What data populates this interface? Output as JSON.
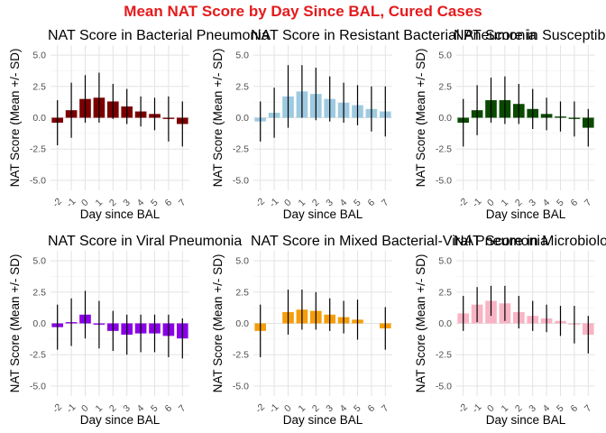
{
  "figure": {
    "title": "Mean NAT Score by Day Since BAL, Cured Cases",
    "title_color": "#e41a1c"
  },
  "chart_data": [
    {
      "type": "bar",
      "title": "NAT Score in Bacterial Pneumonia",
      "xlabel": "Day since BAL",
      "ylabel": "NAT Score (Mean +/- SD)",
      "ylim": [
        -5.8,
        5.8
      ],
      "yticks": [
        "-5.0",
        "-2.5",
        "0.0",
        "2.5",
        "5.0"
      ],
      "categories": [
        "-2",
        "-1",
        "0",
        "1",
        "2",
        "3",
        "4",
        "5",
        "6",
        "7"
      ],
      "color": "#7a0000",
      "values": [
        -0.4,
        0.6,
        1.5,
        1.6,
        1.3,
        0.9,
        0.5,
        0.3,
        -0.1,
        -0.5
      ],
      "sd": [
        1.8,
        2.2,
        1.9,
        2.0,
        1.4,
        1.4,
        1.2,
        1.3,
        1.8,
        1.8
      ],
      "grid": true
    },
    {
      "type": "bar",
      "title": "NAT Score in Resistant Bacterial Pneumonia",
      "xlabel": "Day since BAL",
      "ylabel": "NAT Score (Mean +/- SD)",
      "ylim": [
        -5.8,
        5.8
      ],
      "yticks": [
        "-5.0",
        "-2.5",
        "0.0",
        "2.5",
        "5.0"
      ],
      "categories": [
        "-2",
        "-1",
        "0",
        "1",
        "2",
        "3",
        "4",
        "5",
        "6",
        "7"
      ],
      "color": "#9ecae1",
      "values": [
        -0.3,
        0.4,
        1.7,
        2.1,
        1.9,
        1.5,
        1.2,
        1.0,
        0.7,
        0.5
      ],
      "sd": [
        1.6,
        2.0,
        2.5,
        2.1,
        2.1,
        1.8,
        1.6,
        1.6,
        1.8,
        2.0
      ],
      "grid": true
    },
    {
      "type": "bar",
      "title": "NAT Score in Susceptible Bacterial Pneumonia",
      "xlabel": "Day since BAL",
      "ylabel": "NAT Score (Mean +/- SD)",
      "ylim": [
        -5.8,
        5.8
      ],
      "yticks": [
        "-5.0",
        "-2.5",
        "0.0",
        "2.5",
        "5.0"
      ],
      "categories": [
        "-2",
        "-1",
        "0",
        "1",
        "2",
        "3",
        "4",
        "5",
        "6",
        "7"
      ],
      "color": "#0a4a00",
      "values": [
        -0.4,
        0.6,
        1.4,
        1.4,
        1.1,
        0.7,
        0.3,
        0.1,
        -0.1,
        -0.8
      ],
      "sd": [
        1.9,
        2.0,
        1.8,
        1.9,
        1.6,
        1.6,
        1.3,
        1.2,
        1.4,
        1.5
      ],
      "grid": true
    },
    {
      "type": "bar",
      "title": "NAT Score in Viral Pneumonia",
      "xlabel": "Day since BAL",
      "ylabel": "NAT Score (Mean +/- SD)",
      "ylim": [
        -5.8,
        5.8
      ],
      "yticks": [
        "-5.0",
        "-2.5",
        "0.0",
        "2.5",
        "5.0"
      ],
      "categories": [
        "-2",
        "-1",
        "0",
        "1",
        "2",
        "3",
        "4",
        "5",
        "6",
        "7"
      ],
      "color": "#8a00e6",
      "values": [
        -0.3,
        0.1,
        0.7,
        -0.1,
        -0.6,
        -0.9,
        -0.8,
        -0.8,
        -1.0,
        -1.2
      ],
      "sd": [
        1.8,
        1.9,
        1.9,
        1.9,
        1.6,
        1.6,
        1.5,
        1.5,
        1.7,
        1.6
      ],
      "grid": true
    },
    {
      "type": "bar",
      "title": "NAT Score in Mixed Bacterial-Viral Pneumonia",
      "xlabel": "Day since BAL",
      "ylabel": "NAT Score (Mean +/- SD)",
      "ylim": [
        -5.8,
        5.8
      ],
      "yticks": [
        "-5.0",
        "-2.5",
        "0.0",
        "2.5",
        "5.0"
      ],
      "categories": [
        "-2",
        "-1",
        "0",
        "1",
        "2",
        "3",
        "4",
        "5",
        "6",
        "7"
      ],
      "color": "#f59e0b",
      "values": [
        -0.6,
        null,
        0.9,
        1.1,
        1.0,
        0.7,
        0.5,
        0.3,
        null,
        -0.4
      ],
      "sd": [
        2.1,
        null,
        1.8,
        1.6,
        1.5,
        1.3,
        1.3,
        1.6,
        null,
        1.7
      ],
      "grid": true
    },
    {
      "type": "bar",
      "title": "NAT Score in Microbiology-Negative Pneumonia",
      "xlabel": "Day since BAL",
      "ylabel": "NAT Score (Mean +/- SD)",
      "ylim": [
        -5.8,
        5.8
      ],
      "yticks": [
        "-5.0",
        "-2.5",
        "0.0",
        "2.5",
        "5.0"
      ],
      "categories": [
        "-2",
        "-1",
        "0",
        "1",
        "2",
        "3",
        "4",
        "5",
        "6",
        "7"
      ],
      "color": "#f8b4c4",
      "values": [
        0.8,
        1.5,
        1.8,
        1.6,
        0.9,
        0.6,
        0.4,
        0.2,
        -0.1,
        -0.9
      ],
      "sd": [
        1.4,
        1.4,
        1.2,
        1.4,
        1.3,
        1.2,
        1.1,
        1.2,
        1.5,
        1.5
      ],
      "grid": true
    }
  ]
}
